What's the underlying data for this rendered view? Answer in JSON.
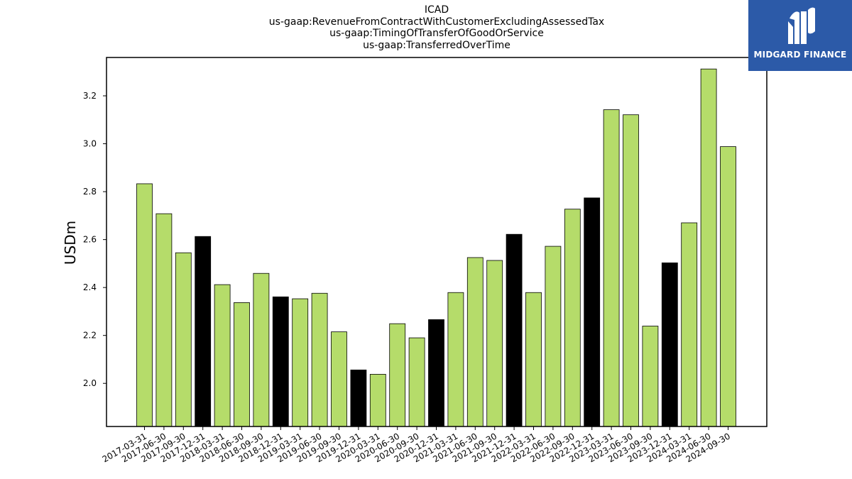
{
  "chart_data": {
    "type": "bar",
    "title_lines": [
      "ICAD",
      "us-gaap:RevenueFromContractWithCustomerExcludingAssessedTax",
      "us-gaap:TimingOfTransferOfGoodOrService",
      "us-gaap:TransferredOverTime"
    ],
    "xlabel": "",
    "ylabel": "USDm",
    "ylim": [
      1.82,
      3.36
    ],
    "yticks": [
      2.0,
      2.2,
      2.4,
      2.6,
      2.8,
      3.0,
      3.2
    ],
    "ytick_labels": [
      "2.0",
      "2.2",
      "2.4",
      "2.6",
      "2.8",
      "3.0",
      "3.2"
    ],
    "grid": false,
    "colors": {
      "quarter": "#b5dc6a",
      "year_end": "#000000",
      "edge": "#000000"
    },
    "categories": [
      "2017-03-31",
      "2017-06-30",
      "2017-09-30",
      "2017-12-31",
      "2018-03-31",
      "2018-06-30",
      "2018-09-30",
      "2018-12-31",
      "2019-03-31",
      "2019-06-30",
      "2019-09-30",
      "2019-12-31",
      "2020-03-31",
      "2020-06-30",
      "2020-09-30",
      "2020-12-31",
      "2021-03-31",
      "2021-06-30",
      "2021-09-30",
      "2021-12-31",
      "2022-03-31",
      "2022-06-30",
      "2022-09-30",
      "2022-12-31",
      "2023-03-31",
      "2023-06-30",
      "2023-09-30",
      "2023-12-31",
      "2024-03-31",
      "2024-06-30",
      "2024-09-30"
    ],
    "values": [
      2.833,
      2.708,
      2.545,
      2.613,
      2.412,
      2.337,
      2.459,
      2.361,
      2.353,
      2.376,
      2.215,
      2.056,
      2.038,
      2.249,
      2.19,
      2.266,
      2.379,
      2.525,
      2.513,
      2.622,
      2.379,
      2.572,
      2.727,
      2.774,
      3.142,
      3.121,
      2.239,
      2.503,
      2.67,
      3.312,
      2.988
    ],
    "year_end_flags": [
      false,
      false,
      false,
      true,
      false,
      false,
      false,
      true,
      false,
      false,
      false,
      true,
      false,
      false,
      false,
      true,
      false,
      false,
      false,
      true,
      false,
      false,
      false,
      true,
      false,
      false,
      false,
      true,
      false,
      false,
      false
    ]
  },
  "logo": {
    "text": "MIDGARD FINANCE"
  }
}
